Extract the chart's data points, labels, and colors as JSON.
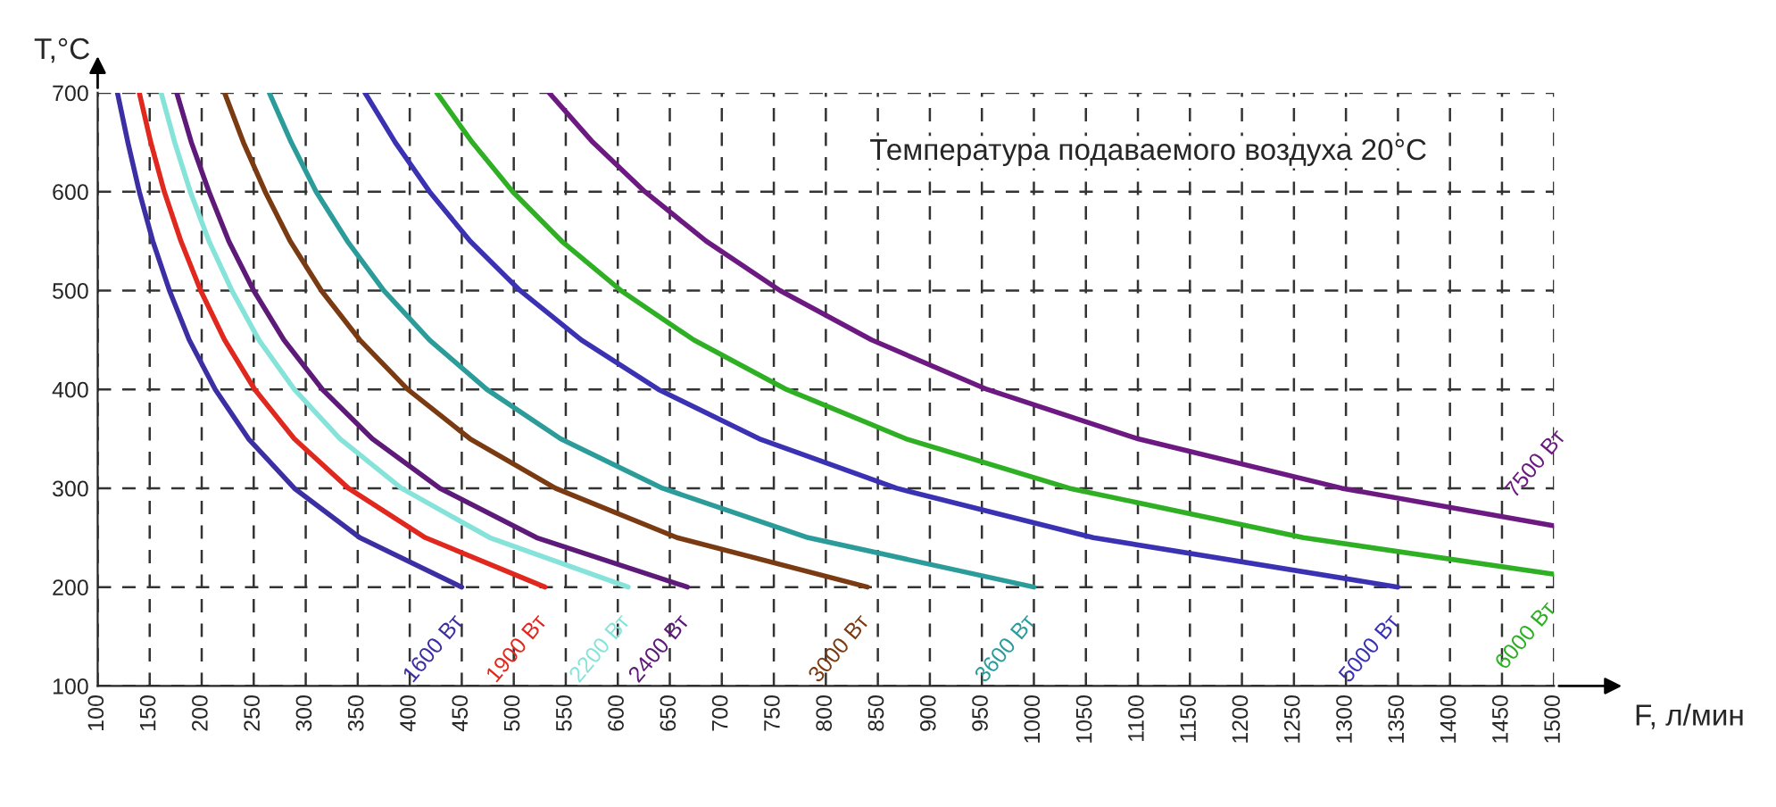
{
  "chart_data": {
    "type": "line",
    "xlabel": "F, л/мин",
    "ylabel": "T,°C",
    "annotations": [
      "Температура подаваемого воздуха 20°C"
    ],
    "xlim": [
      100,
      1500
    ],
    "ylim": [
      100,
      700
    ],
    "xticks": [
      100,
      150,
      200,
      250,
      300,
      350,
      400,
      450,
      500,
      550,
      600,
      650,
      700,
      750,
      800,
      850,
      900,
      950,
      1000,
      1050,
      1100,
      1150,
      1200,
      1250,
      1300,
      1350,
      1400,
      1450,
      1500
    ],
    "yticks": [
      100,
      200,
      300,
      400,
      500,
      600,
      700
    ],
    "grid": true,
    "legend": false,
    "marker": "none",
    "line_style": "solid",
    "series": [
      {
        "name": "1600 Вт",
        "color": "#3b2fa3",
        "x": [
          119,
          129,
          140,
          153,
          169,
          188,
          213,
          245,
          289,
          352,
          450
        ],
        "values": [
          700,
          650,
          600,
          550,
          500,
          450,
          400,
          350,
          300,
          250,
          200
        ]
      },
      {
        "name": "1900 Вт",
        "color": "#e0281e",
        "x": [
          140,
          151,
          164,
          180,
          199,
          222,
          251,
          289,
          341,
          415,
          530
        ],
        "values": [
          700,
          650,
          600,
          550,
          500,
          450,
          400,
          350,
          300,
          250,
          200
        ]
      },
      {
        "name": "2200 Вт",
        "color": "#86e3da",
        "x": [
          161,
          174,
          189,
          207,
          229,
          255,
          289,
          333,
          392,
          477,
          610
        ],
        "values": [
          700,
          650,
          600,
          550,
          500,
          450,
          400,
          350,
          300,
          250,
          200
        ]
      },
      {
        "name": "2400 Вт",
        "color": "#5e1a78",
        "x": [
          176,
          190,
          207,
          226,
          250,
          279,
          316,
          364,
          429,
          522,
          667
        ],
        "values": [
          700,
          650,
          600,
          550,
          500,
          450,
          400,
          350,
          300,
          250,
          200
        ]
      },
      {
        "name": "3000 Вт",
        "color": "#7a3a12",
        "x": [
          222,
          240,
          261,
          285,
          315,
          352,
          398,
          458,
          540,
          657,
          840
        ],
        "values": [
          700,
          650,
          600,
          550,
          500,
          450,
          400,
          350,
          300,
          250,
          200
        ]
      },
      {
        "name": "3600 Вт",
        "color": "#2b9c9a",
        "x": [
          265,
          286,
          310,
          340,
          375,
          419,
          474,
          545,
          643,
          783,
          1000
        ],
        "values": [
          700,
          650,
          600,
          550,
          500,
          450,
          400,
          350,
          300,
          250,
          200
        ]
      },
      {
        "name": "5000 Вт",
        "color": "#3a32b2",
        "x": [
          357,
          386,
          419,
          458,
          506,
          565,
          639,
          736,
          868,
          1057,
          1350
        ],
        "values": [
          700,
          650,
          600,
          550,
          500,
          450,
          400,
          350,
          300,
          250,
          200
        ]
      },
      {
        "name": "6000 Вт",
        "color": "#2fb024",
        "x": [
          426,
          460,
          499,
          546,
          603,
          673,
          762,
          877,
          1034,
          1259,
          1500
        ],
        "values": [
          700,
          650,
          600,
          550,
          500,
          450,
          400,
          350,
          300,
          250,
          213
        ]
      },
      {
        "name": "7500 Вт",
        "color": "#6c1a82",
        "x": [
          534,
          576,
          626,
          685,
          756,
          844,
          955,
          1100,
          1296,
          1500
        ],
        "values": [
          700,
          650,
          600,
          550,
          500,
          450,
          400,
          350,
          300,
          262
        ]
      }
    ]
  }
}
